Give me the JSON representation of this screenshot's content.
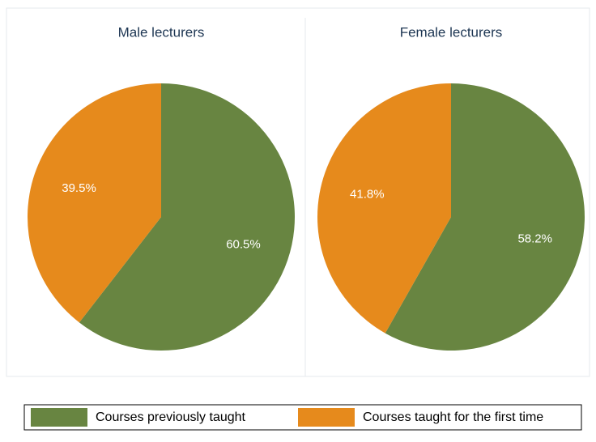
{
  "chart_data": [
    {
      "type": "pie",
      "title": "Male lecturers",
      "categories": [
        "Courses previously taught",
        "Courses taught for the first time"
      ],
      "values": [
        60.5,
        39.5
      ],
      "value_labels": [
        "60.5%",
        "39.5%"
      ],
      "colors": [
        "#688541",
        "#e68a1c"
      ]
    },
    {
      "type": "pie",
      "title": "Female lecturers",
      "categories": [
        "Courses previously taught",
        "Courses taught for the first time"
      ],
      "values": [
        58.2,
        41.8
      ],
      "value_labels": [
        "58.2%",
        "41.8%"
      ],
      "colors": [
        "#688541",
        "#e68a1c"
      ]
    }
  ]
}
